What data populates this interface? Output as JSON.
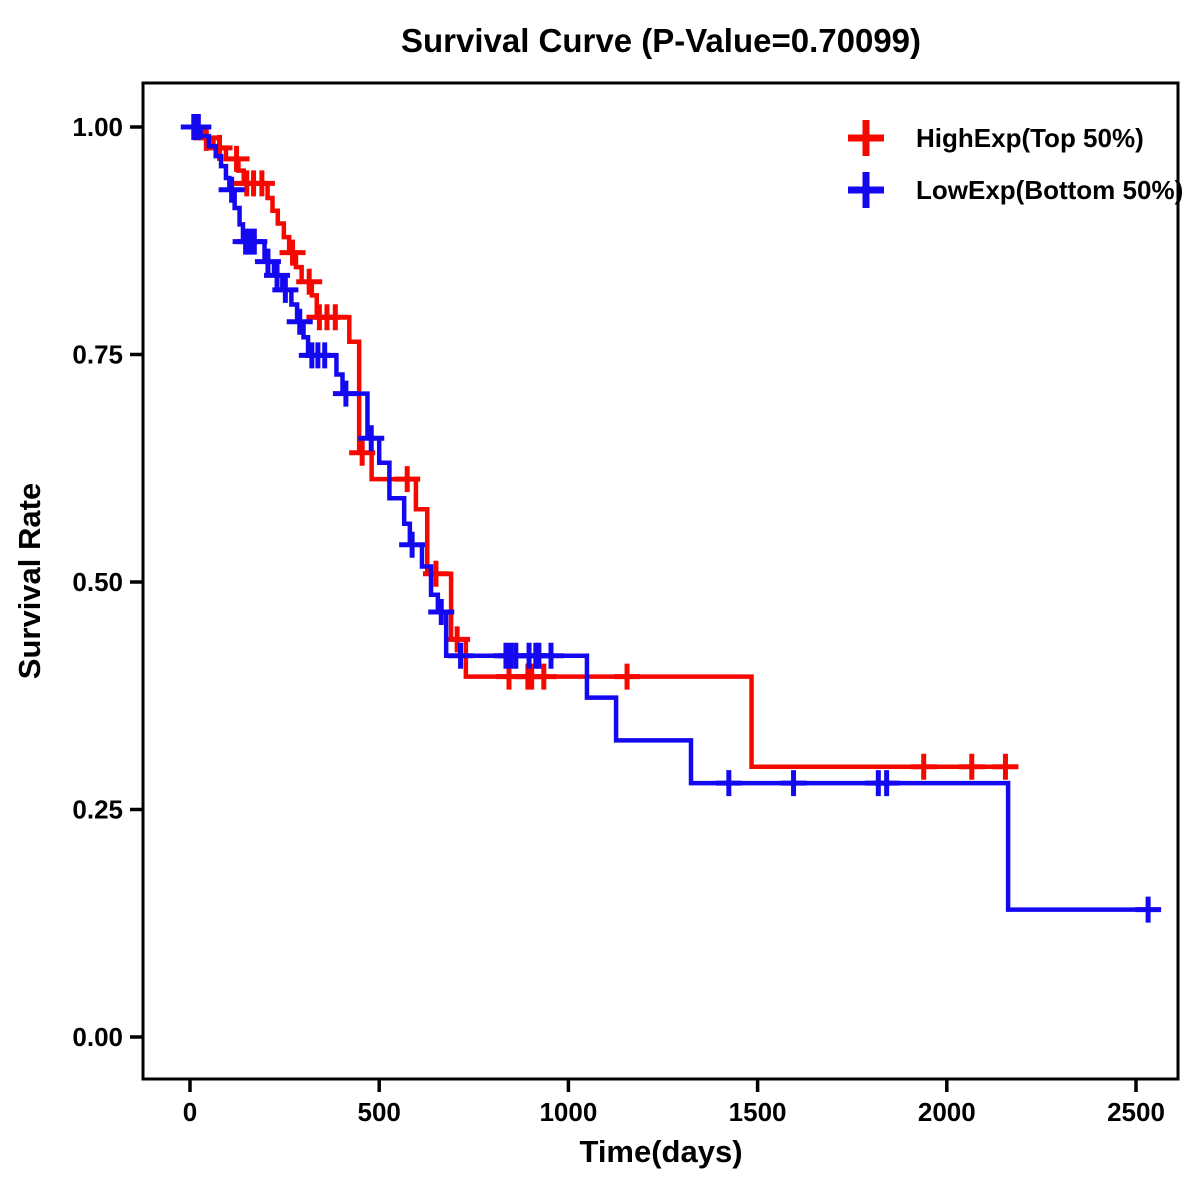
{
  "title": "Survival Curve (P-Value=0.70099)",
  "p_value": "0.70099",
  "x_axis": {
    "label": "Time(days)",
    "tick_labels": [
      "0",
      "500",
      "1000",
      "1500",
      "2000",
      "2500"
    ],
    "tick_values": [
      0,
      500,
      1000,
      1500,
      2000,
      2500
    ]
  },
  "y_axis": {
    "label": "Survival Rate",
    "tick_labels": [
      "1.00",
      "0.75",
      "0.50",
      "0.25",
      "0.00"
    ],
    "tick_values": [
      1.0,
      0.75,
      0.5,
      0.25,
      0.0
    ]
  },
  "legend": {
    "position": "top-right",
    "items": [
      {
        "label": "HighExp(Top 50%)",
        "color": "#F50800",
        "marker": "plus"
      },
      {
        "label": "LowExp(Bottom 50%)",
        "color": "#1408F0",
        "marker": "plus"
      }
    ]
  },
  "chart_data": {
    "type": "line",
    "subtype": "kaplan-meier-survival-step",
    "title": "Survival Curve (P-Value=0.70099)",
    "xlabel": "Time(days)",
    "ylabel": "Survival Rate",
    "xlim": [
      -60,
      2660
    ],
    "ylim": [
      -0.045,
      1.05
    ],
    "grid": false,
    "legend_position": "top-right",
    "x_ticks": [
      0,
      500,
      1000,
      1500,
      2000,
      2500
    ],
    "y_ticks": [
      1.0,
      0.75,
      0.5,
      0.25,
      0.0
    ],
    "series": [
      {
        "name": "HighExp(Top 50%)",
        "color": "#F50800",
        "end_time": 2184,
        "steps": [
          [
            0,
            1.0
          ],
          [
            35,
            0.988
          ],
          [
            62,
            0.977
          ],
          [
            95,
            0.965
          ],
          [
            128,
            0.952
          ],
          [
            142,
            0.938
          ],
          [
            205,
            0.922
          ],
          [
            218,
            0.908
          ],
          [
            232,
            0.894
          ],
          [
            248,
            0.879
          ],
          [
            262,
            0.862
          ],
          [
            280,
            0.846
          ],
          [
            295,
            0.83
          ],
          [
            322,
            0.815
          ],
          [
            335,
            0.791
          ],
          [
            421,
            0.764
          ],
          [
            447,
            0.642
          ],
          [
            480,
            0.613
          ],
          [
            597,
            0.58
          ],
          [
            627,
            0.509
          ],
          [
            690,
            0.437
          ],
          [
            729,
            0.396
          ],
          [
            1484,
            0.297
          ]
        ],
        "censor_times": [
          12,
          43,
          78,
          123,
          150,
          168,
          190,
          271,
          315,
          342,
          362,
          384,
          455,
          574,
          650,
          706,
          843,
          893,
          903,
          935,
          1155,
          1939,
          2066,
          2155
        ]
      },
      {
        "name": "LowExp(Bottom 50%)",
        "color": "#1408F0",
        "end_time": 2558,
        "steps": [
          [
            0,
            1.0
          ],
          [
            28,
            0.99
          ],
          [
            50,
            0.979
          ],
          [
            68,
            0.968
          ],
          [
            82,
            0.957
          ],
          [
            95,
            0.944
          ],
          [
            104,
            0.931
          ],
          [
            118,
            0.911
          ],
          [
            131,
            0.893
          ],
          [
            140,
            0.874
          ],
          [
            197,
            0.852
          ],
          [
            222,
            0.837
          ],
          [
            244,
            0.821
          ],
          [
            268,
            0.805
          ],
          [
            283,
            0.786
          ],
          [
            300,
            0.769
          ],
          [
            312,
            0.749
          ],
          [
            387,
            0.728
          ],
          [
            403,
            0.707
          ],
          [
            469,
            0.658
          ],
          [
            500,
            0.631
          ],
          [
            527,
            0.592
          ],
          [
            566,
            0.564
          ],
          [
            581,
            0.541
          ],
          [
            613,
            0.517
          ],
          [
            637,
            0.486
          ],
          [
            655,
            0.467
          ],
          [
            677,
            0.419
          ],
          [
            1049,
            0.373
          ],
          [
            1126,
            0.326
          ],
          [
            1324,
            0.279
          ],
          [
            2162,
            0.14
          ]
        ],
        "censor_times": [
          10,
          22,
          110,
          147,
          158,
          170,
          206,
          230,
          252,
          290,
          322,
          338,
          356,
          412,
          479,
          587,
          664,
          715,
          835,
          848,
          861,
          896,
          914,
          922,
          954,
          1424,
          1595,
          1819,
          1841,
          2532
        ]
      }
    ]
  }
}
